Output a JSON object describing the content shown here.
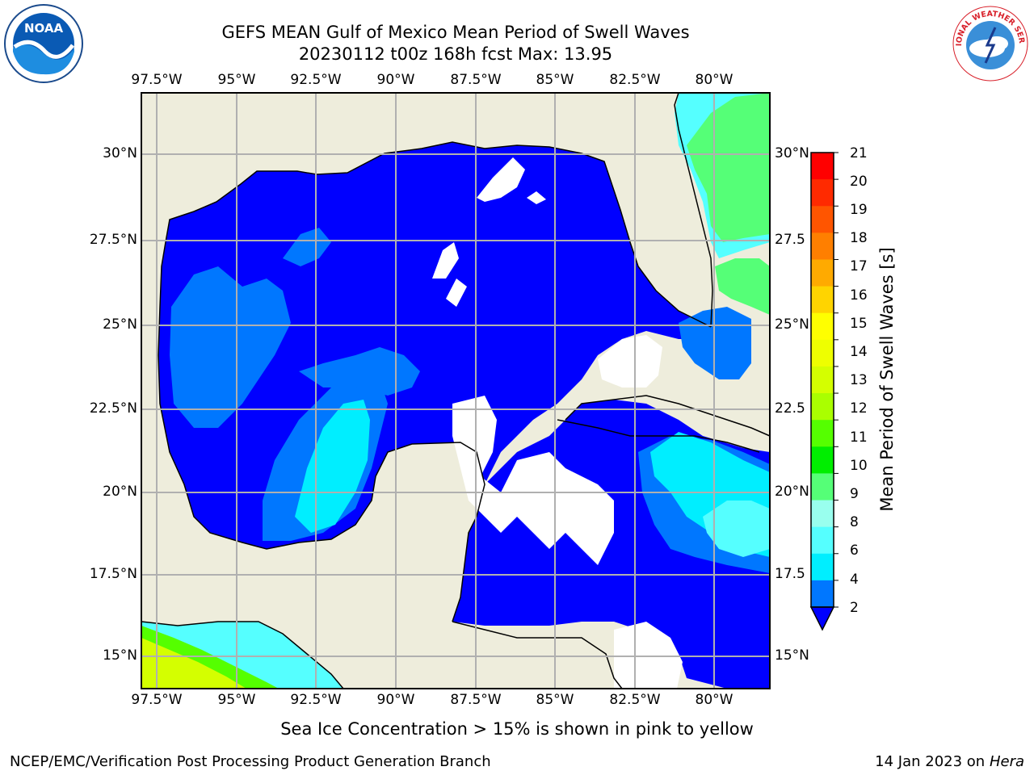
{
  "header": {
    "title": "GEFS MEAN Gulf of Mexico Mean Period of Swell Waves",
    "subtitle": "20230112 t00z 168h fcst   Max: 13.95"
  },
  "logos": {
    "left": {
      "name": "noaa-logo",
      "text": "NOAA"
    },
    "right": {
      "name": "nws-logo",
      "text": "NATIONAL WEATHER SERVICE"
    }
  },
  "map": {
    "lon_ticks": [
      "97.5°W",
      "95°W",
      "92.5°W",
      "90°W",
      "87.5°W",
      "85°W",
      "82.5°W",
      "80°W"
    ],
    "lat_ticks_left": [
      "30°N",
      "27.5°N",
      "25°N",
      "22.5°N",
      "20°N",
      "17.5°N",
      "15°N"
    ],
    "lat_ticks_right": [
      "30°N",
      "27.5",
      "25°N",
      "22.5",
      "20°N",
      "17.5",
      "15°N"
    ],
    "land_color": "#eeeddc",
    "no_data_color": "#ffffff"
  },
  "colorbar": {
    "label": "Mean Period of Swell Waves [s]",
    "ticks": [
      "21",
      "20",
      "19",
      "18",
      "17",
      "16",
      "15",
      "14",
      "13",
      "12",
      "11",
      "10",
      "9",
      "8",
      "6",
      "4",
      "2"
    ],
    "colors": [
      "#ff0000",
      "#ff2a00",
      "#ff5500",
      "#ff7f00",
      "#ffaa00",
      "#ffd400",
      "#ffff00",
      "#eeff00",
      "#d4ff00",
      "#aaff00",
      "#55ff00",
      "#00ee00",
      "#55ff77",
      "#99ffee",
      "#55ffff",
      "#00eeff",
      "#0077ff"
    ],
    "extend_color": "#0000ff"
  },
  "footer": {
    "note": "Sea Ice Concentration > 15% is shown in pink to yellow",
    "left": "NCEP/EMC/Verification Post Processing Product Generation Branch",
    "right_prefix": "14 Jan 2023 on ",
    "right_host": "Hera"
  }
}
